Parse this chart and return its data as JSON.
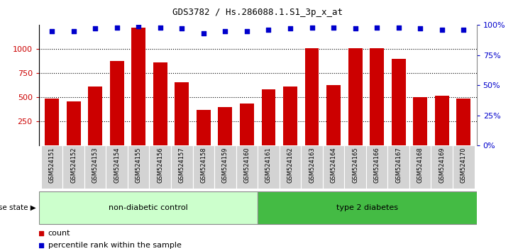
{
  "title": "GDS3782 / Hs.286088.1.S1_3p_x_at",
  "samples": [
    "GSM524151",
    "GSM524152",
    "GSM524153",
    "GSM524154",
    "GSM524155",
    "GSM524156",
    "GSM524157",
    "GSM524158",
    "GSM524159",
    "GSM524160",
    "GSM524161",
    "GSM524162",
    "GSM524163",
    "GSM524164",
    "GSM524165",
    "GSM524166",
    "GSM524167",
    "GSM524168",
    "GSM524169",
    "GSM524170"
  ],
  "counts": [
    490,
    460,
    610,
    880,
    1220,
    860,
    660,
    370,
    400,
    435,
    580,
    610,
    1010,
    630,
    1010,
    1010,
    900,
    500,
    520,
    490
  ],
  "percentile_ranks": [
    95,
    95,
    97,
    98,
    99,
    98,
    97,
    93,
    95,
    95,
    96,
    97,
    98,
    98,
    97,
    98,
    98,
    97,
    96,
    96
  ],
  "non_diabetic_count": 10,
  "type2_diabetes_count": 10,
  "bar_color": "#cc0000",
  "dot_color": "#0000cc",
  "ylim_left": [
    0,
    1250
  ],
  "ylim_right": [
    0,
    100
  ],
  "yticks_left": [
    250,
    500,
    750,
    1000
  ],
  "yticks_right": [
    0,
    25,
    50,
    75,
    100
  ],
  "background_color": "#ffffff",
  "tick_bg_color": "#d3d3d3",
  "non_diabetic_color": "#ccffcc",
  "type2_color": "#44bb44",
  "legend_count_color": "#cc0000",
  "legend_pct_color": "#0000cc"
}
